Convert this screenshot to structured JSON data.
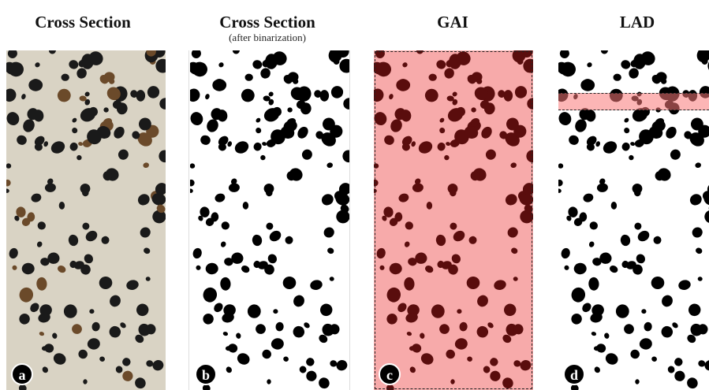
{
  "panels": [
    {
      "title": "Cross Section",
      "subtitle": "",
      "badge": "a",
      "style": "photo"
    },
    {
      "title": "Cross Section",
      "subtitle": "(after binarization)",
      "badge": "b",
      "style": "binary"
    },
    {
      "title": "GAI",
      "subtitle": "",
      "badge": "c",
      "style": "gai"
    },
    {
      "title": "LAD",
      "subtitle": "",
      "badge": "d",
      "style": "lad"
    }
  ],
  "colors": {
    "photo_bg": "#d9d3c4",
    "particle_dark": "#1a1a1a",
    "particle_brown": "#6b4a2a",
    "gai_fill": "#f7aaaa",
    "gai_particle": "#5a0d0d",
    "lad_strip": "#f58a8a"
  }
}
